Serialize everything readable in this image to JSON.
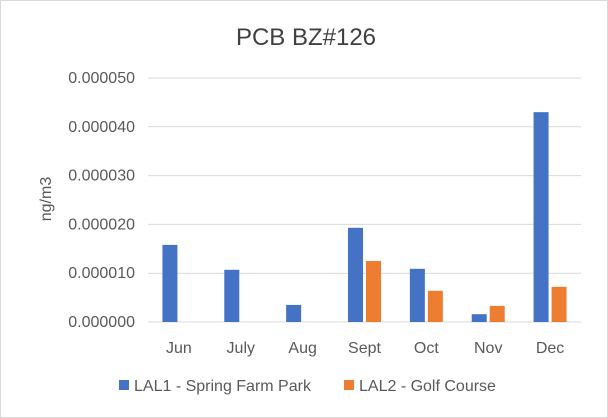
{
  "chart_data": {
    "type": "bar",
    "title": "PCB BZ#126",
    "xlabel": "",
    "ylabel": "ng/m3",
    "categories": [
      "Jun",
      "July",
      "Aug",
      "Sept",
      "Oct",
      "Nov",
      "Dec"
    ],
    "series": [
      {
        "name": "LAL1 - Spring Farm Park",
        "color": "#4472c4",
        "values": [
          1.58e-05,
          1.07e-05,
          3.5e-06,
          1.93e-05,
          1.09e-05,
          1.6e-06,
          4.3e-05
        ]
      },
      {
        "name": "LAL2 - Golf Course",
        "color": "#ed7d31",
        "values": [
          null,
          null,
          null,
          1.25e-05,
          6.4e-06,
          3.3e-06,
          7.2e-06
        ]
      }
    ],
    "ylim": [
      0,
      5e-05
    ],
    "yticks": [
      "0.000000",
      "0.000010",
      "0.000020",
      "0.000030",
      "0.000040",
      "0.000050"
    ],
    "grid": true,
    "legend": "bottom"
  }
}
